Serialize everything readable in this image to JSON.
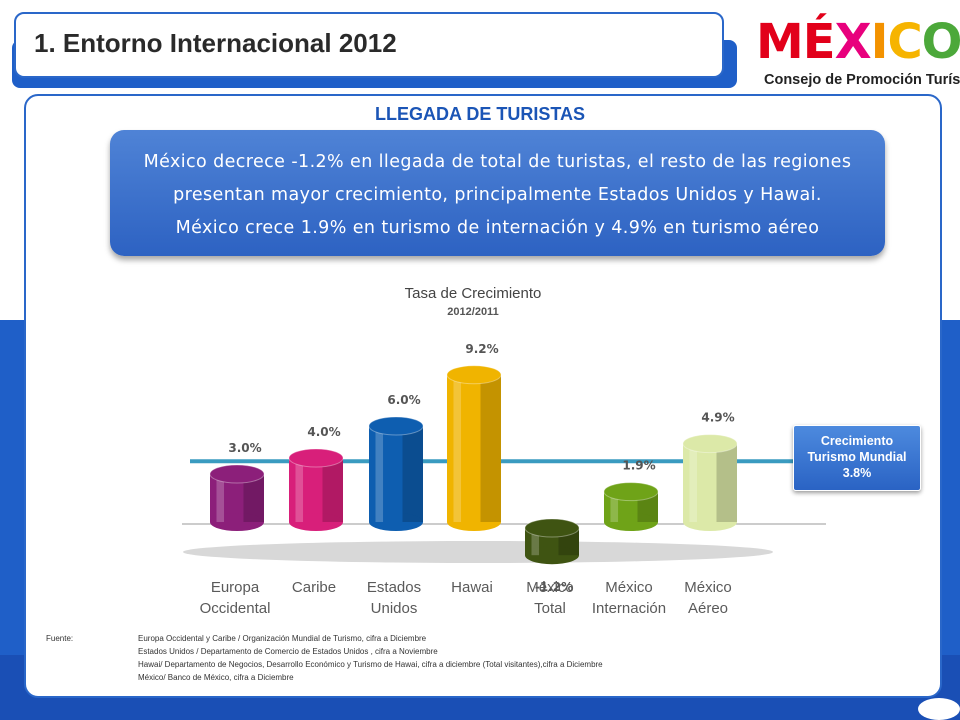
{
  "header": {
    "title": "1.   Entorno Internacional 2012"
  },
  "logo": {
    "letters": [
      "M",
      "É",
      "X",
      "I",
      "C",
      "O"
    ],
    "letter_colors": [
      "#e2001a",
      "#e2001a",
      "#e8007d",
      "#f39200",
      "#f6b400",
      "#4ca83a"
    ],
    "subtitle": "Consejo de Promoción Turística"
  },
  "section": {
    "title": "LLEGADA DE TURISTAS"
  },
  "callout": {
    "lines": [
      "México decrece  -1.2% en llegada de total de turistas, el resto de las regiones",
      "presentan mayor crecimiento, principalmente Estados Unidos y Hawai.",
      "México crece 1.9% en turismo de internación y 4.9% en turismo aéreo"
    ]
  },
  "chart_data": {
    "type": "bar",
    "title": "Tasa de Crecimiento",
    "subtitle": "2012/2011",
    "categories": [
      [
        "Europa",
        "Occidental"
      ],
      [
        "Caribe"
      ],
      [
        "Estados",
        "Unidos"
      ],
      [
        "Hawai"
      ],
      [
        "México",
        "Total"
      ],
      [
        "México",
        "Internación"
      ],
      [
        "México",
        "Aéreo"
      ]
    ],
    "values": [
      3.0,
      4.0,
      6.0,
      9.2,
      -1.2,
      1.9,
      4.9
    ],
    "value_labels": [
      "3.0%",
      "4.0%",
      "6.0%",
      "9.2%",
      "-1.2%",
      "1.9%",
      "4.9%"
    ],
    "colors": [
      "#8c1f7a",
      "#d81f7a",
      "#0e5eb0",
      "#f0b400",
      "#3f5412",
      "#6fa318",
      "#dce9a8"
    ],
    "reference_line": {
      "value": 3.8,
      "color": "#3a9bc0",
      "label_lines": [
        "Crecimiento",
        "Turismo Mundial",
        "3.8%"
      ]
    }
  },
  "source": {
    "label": "Fuente:",
    "lines": [
      "Europa Occidental y Caribe / Organización Mundial de Turismo, cifra a Diciembre",
      "Estados Unidos / Departamento de Comercio de Estados Unidos , cifra a Noviembre",
      "Hawai/ Departamento de Negocios, Desarrollo Económico y Turismo de Hawai, cifra a diciembre (Total visitantes),cifra a Diciembre",
      "México/ Banco de México, cifra a Diciembre"
    ]
  }
}
